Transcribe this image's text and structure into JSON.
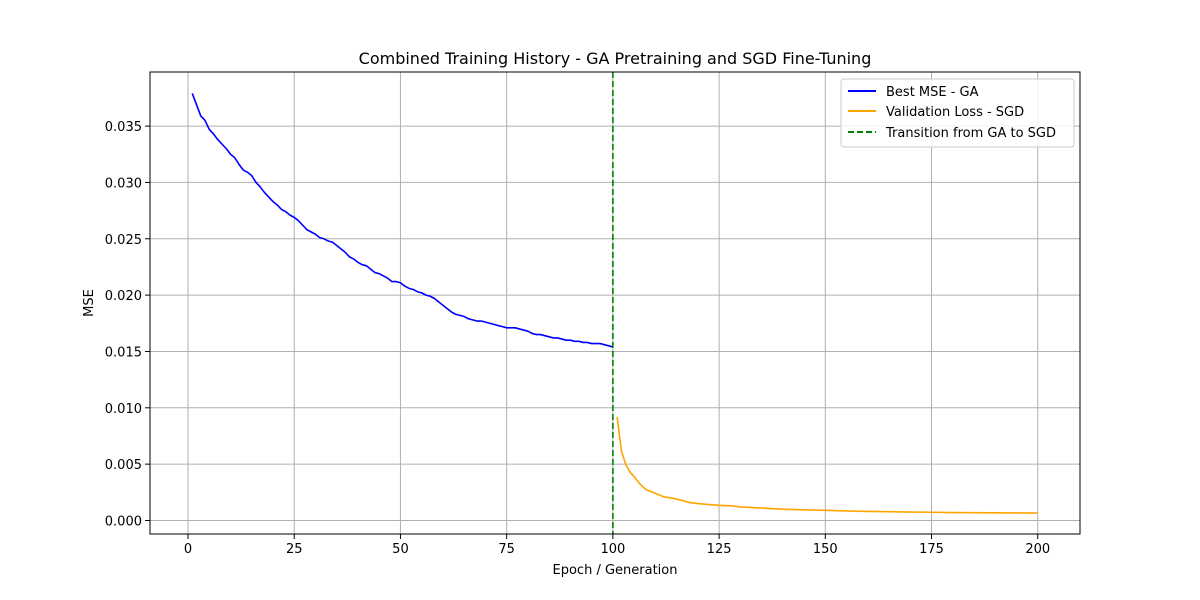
{
  "chart_data": {
    "type": "line",
    "title": "Combined Training History - GA Pretraining and SGD Fine-Tuning",
    "xlabel": "Epoch / Generation",
    "ylabel": "MSE",
    "xlim": [
      -8.95,
      209.95
    ],
    "ylim": [
      -0.0012,
      0.0398
    ],
    "xticks": [
      0,
      25,
      50,
      75,
      100,
      125,
      150,
      175,
      200
    ],
    "xtick_labels": [
      "0",
      "25",
      "50",
      "75",
      "100",
      "125",
      "150",
      "175",
      "200"
    ],
    "yticks": [
      0.0,
      0.005,
      0.01,
      0.015,
      0.02,
      0.025,
      0.03,
      0.035
    ],
    "ytick_labels": [
      "0.000",
      "0.005",
      "0.010",
      "0.015",
      "0.020",
      "0.025",
      "0.030",
      "0.035"
    ],
    "grid": true,
    "legend_position": "top-right",
    "series": [
      {
        "name": "Best MSE - GA",
        "color": "#0000ff",
        "style": "solid",
        "x": [
          1,
          2,
          3,
          4,
          5,
          6,
          7,
          8,
          9,
          10,
          11,
          12,
          13,
          14,
          15,
          16,
          17,
          18,
          19,
          20,
          21,
          22,
          23,
          24,
          25,
          26,
          27,
          28,
          29,
          30,
          31,
          32,
          33,
          34,
          35,
          36,
          37,
          38,
          39,
          40,
          41,
          42,
          43,
          44,
          45,
          46,
          47,
          48,
          49,
          50,
          51,
          52,
          53,
          54,
          55,
          56,
          57,
          58,
          59,
          60,
          61,
          62,
          63,
          64,
          65,
          66,
          67,
          68,
          69,
          70,
          71,
          72,
          73,
          74,
          75,
          76,
          77,
          78,
          79,
          80,
          81,
          82,
          83,
          84,
          85,
          86,
          87,
          88,
          89,
          90,
          91,
          92,
          93,
          94,
          95,
          96,
          97,
          98,
          99,
          100
        ],
        "y": [
          0.0379,
          0.0369,
          0.0359,
          0.0355,
          0.0347,
          0.0343,
          0.0338,
          0.0334,
          0.033,
          0.0325,
          0.0322,
          0.0316,
          0.0311,
          0.0309,
          0.0306,
          0.03,
          0.0296,
          0.0291,
          0.0287,
          0.0283,
          0.028,
          0.0276,
          0.0274,
          0.0271,
          0.0269,
          0.0266,
          0.0262,
          0.0258,
          0.0256,
          0.0254,
          0.0251,
          0.025,
          0.0248,
          0.0247,
          0.0244,
          0.0241,
          0.0238,
          0.0234,
          0.0232,
          0.0229,
          0.0227,
          0.0226,
          0.0223,
          0.022,
          0.0219,
          0.0217,
          0.0215,
          0.0212,
          0.0212,
          0.0211,
          0.0208,
          0.0206,
          0.0205,
          0.0203,
          0.0202,
          0.02,
          0.0199,
          0.0197,
          0.0194,
          0.0191,
          0.0188,
          0.0185,
          0.0183,
          0.0182,
          0.0181,
          0.0179,
          0.0178,
          0.0177,
          0.0177,
          0.0176,
          0.0175,
          0.0174,
          0.0173,
          0.0172,
          0.0171,
          0.0171,
          0.0171,
          0.017,
          0.0169,
          0.0168,
          0.0166,
          0.0165,
          0.0165,
          0.0164,
          0.0163,
          0.0162,
          0.0162,
          0.0161,
          0.016,
          0.016,
          0.0159,
          0.0159,
          0.0158,
          0.0158,
          0.0157,
          0.0157,
          0.0157,
          0.0156,
          0.0155,
          0.0154
        ]
      },
      {
        "name": "Validation Loss - SGD",
        "color": "#ffa500",
        "style": "solid",
        "x": [
          101,
          102,
          103,
          104,
          105,
          106,
          107,
          108,
          110,
          112,
          115,
          118,
          120,
          123,
          125,
          128,
          130,
          135,
          140,
          145,
          150,
          155,
          160,
          165,
          170,
          175,
          180,
          185,
          190,
          195,
          200
        ],
        "y": [
          0.0092,
          0.0062,
          0.005,
          0.0043,
          0.0039,
          0.0034,
          0.003,
          0.0027,
          0.0024,
          0.0021,
          0.0019,
          0.0016,
          0.0015,
          0.0014,
          0.00135,
          0.0013,
          0.0012,
          0.0011,
          0.001,
          0.00095,
          0.0009,
          0.00085,
          0.0008,
          0.00078,
          0.00075,
          0.00073,
          0.0007,
          0.00069,
          0.00068,
          0.00067,
          0.00066
        ]
      }
    ],
    "vlines": [
      {
        "name": "Transition from GA to SGD",
        "x": 100,
        "color": "#008000",
        "style": "dashed"
      }
    ]
  }
}
